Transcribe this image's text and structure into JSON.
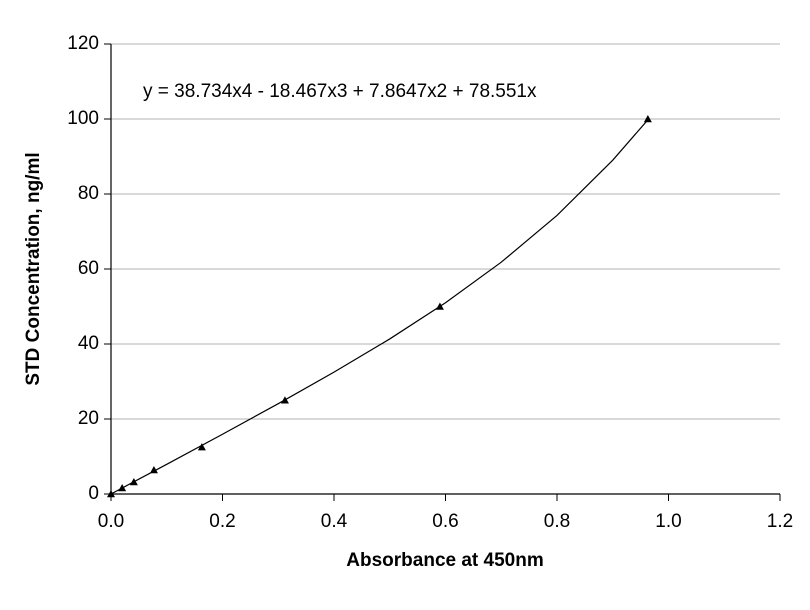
{
  "chart_data": {
    "type": "scatter",
    "x_label": "Absorbance at 450nm",
    "y_label": "STD Concentration, ng/ml",
    "annotation": "y = 38.734x4 - 18.467x3 + 7.8647x2 + 78.551x",
    "xlim": [
      0,
      1.2
    ],
    "ylim": [
      0,
      120
    ],
    "xticks": [
      {
        "value": 0,
        "label": "0.0"
      },
      0.2,
      0.4,
      0.6,
      0.8,
      {
        "value": 1,
        "label": "1.0"
      },
      1.2
    ],
    "yticks": [
      0,
      20,
      40,
      60,
      80,
      100,
      120
    ],
    "grid": true,
    "series": [
      {
        "color": "#000000",
        "marker": "triangle",
        "x": [
          0,
          0.02,
          0.041,
          0.077,
          0.163,
          0.312,
          0.59,
          0.963
        ],
        "values": [
          0,
          1.6,
          3.2,
          6.4,
          12.5,
          25,
          50,
          100
        ]
      }
    ],
    "trendline": {
      "color": "#000000",
      "x": [
        0,
        0.1,
        0.2,
        0.3,
        0.4,
        0.5,
        0.6,
        0.7,
        0.8,
        0.9,
        0.965
      ],
      "values": [
        0,
        7.92,
        15.94,
        24.09,
        32.49,
        41.35,
        50.99,
        61.81,
        74.28,
        89.02,
        100.12
      ]
    }
  }
}
